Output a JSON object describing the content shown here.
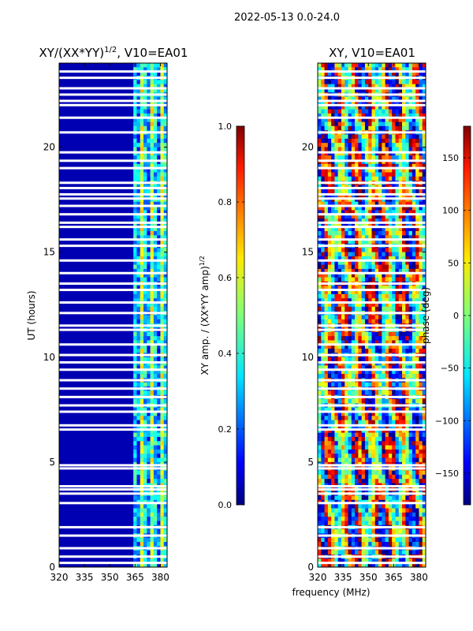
{
  "suptitle": "2022-05-13 0.0-24.0",
  "shared_xlabel": "frequency (MHz)",
  "chart_data": [
    {
      "type": "heatmap",
      "title": "XY/(XX*YY)",
      "title_sup": "1/2",
      "title_suffix": ", V10=EA01",
      "ylabel": "UT (hours)",
      "xlim": [
        320,
        384
      ],
      "ylim": [
        0,
        24
      ],
      "xticks": [
        320,
        335,
        350,
        365,
        380
      ],
      "yticks": [
        0,
        5,
        10,
        15,
        20
      ],
      "colorbar": {
        "label": "XY amp. / (XX*YY amp)",
        "label_sup": "1/2",
        "range": [
          0.0,
          1.0
        ],
        "ticks": [
          "0.0",
          "0.2",
          "0.4",
          "0.6",
          "0.8",
          "1.0"
        ],
        "tick_values": [
          0.0,
          0.2,
          0.4,
          0.6,
          0.8,
          1.0
        ],
        "colormap": "jet"
      },
      "bright_channel_band_mhz": [
        364,
        384
      ],
      "background_level": 0.05
    },
    {
      "type": "heatmap",
      "title": "XY, V10=EA01",
      "xlim": [
        320,
        384
      ],
      "ylim": [
        0,
        24
      ],
      "xticks": [
        320,
        335,
        350,
        365,
        380
      ],
      "yticks": [
        0,
        5,
        10,
        15,
        20
      ],
      "colorbar": {
        "label": "phase (deg)",
        "range": [
          -180,
          180
        ],
        "ticks": [
          "150",
          "100",
          "50",
          "0",
          "−50",
          "−100",
          "−150"
        ],
        "tick_values": [
          150,
          100,
          50,
          0,
          -50,
          -100,
          -150
        ],
        "colormap": "jet"
      }
    }
  ],
  "flagged_gaps_ut_hours": [
    0.2,
    0.5,
    0.9,
    1.5,
    1.9,
    3.05,
    3.5,
    3.7,
    3.85,
    4.7,
    4.85,
    6.55,
    6.75,
    7.4,
    7.7,
    8.1,
    8.5,
    8.9,
    9.4,
    9.75,
    10.1,
    10.6,
    11.3,
    11.5,
    12.1,
    12.6,
    13.2,
    13.5,
    14.0,
    14.6,
    15.3,
    15.6,
    16.2,
    16.4,
    16.8,
    17.2,
    17.55,
    17.75,
    18.05,
    18.3,
    19.0,
    19.35,
    19.75,
    20.7,
    21.4,
    22.0,
    22.2,
    22.5,
    22.8,
    23.3,
    23.6
  ],
  "colors": {
    "axis": "#000000",
    "background": "#ffffff",
    "gap": "#ffffff"
  }
}
